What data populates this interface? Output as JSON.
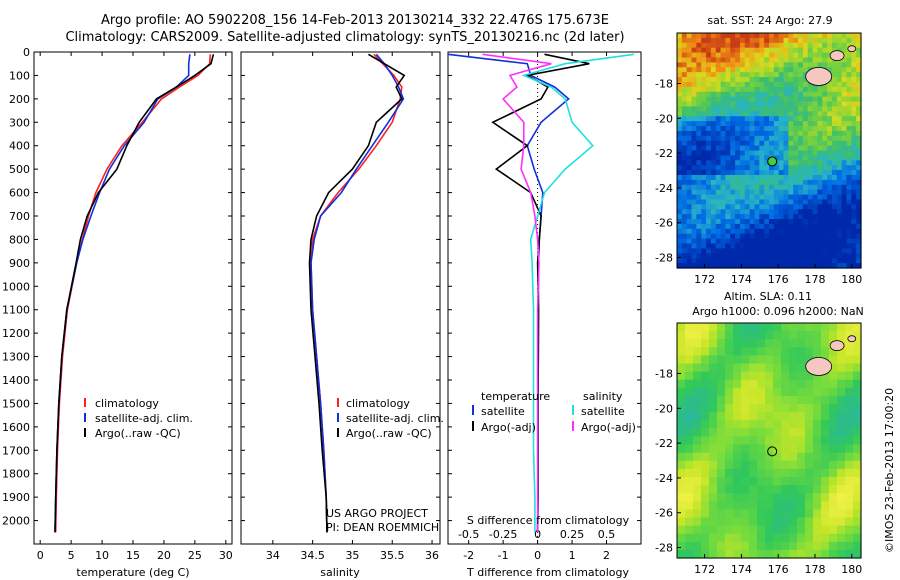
{
  "header": {
    "line1": "Argo profile: AO 5902208_156 14-Feb-2013 20130214_332 22.476S 175.673E",
    "line2": "Climatology: CARS2009. Satellite-adjusted climatology: synTS_20130216.nc (2d later)"
  },
  "colors": {
    "climatology": "#ff2020",
    "satellite": "#1030e0",
    "argo": "#000000",
    "satellite_s": "#20e0e0",
    "argo_s": "#ff30ff"
  },
  "chart_data": [
    {
      "type": "line",
      "xlabel": "temperature (deg C)",
      "ylabel": "",
      "ylim": [
        2100,
        0
      ],
      "xlim": [
        -1,
        31
      ],
      "xticks": [
        0,
        5,
        10,
        15,
        20,
        25,
        30
      ],
      "yticks": [
        0,
        100,
        200,
        300,
        400,
        500,
        600,
        700,
        800,
        900,
        1000,
        1100,
        1200,
        1300,
        1400,
        1500,
        1600,
        1700,
        1800,
        1900,
        2000
      ],
      "legend": [
        "climatology",
        "satellite-adj. clim.",
        "Argo(..raw -QC)"
      ],
      "series": [
        {
          "name": "climatology",
          "color": "#ff2020",
          "x": [
            27.5,
            27.4,
            25.5,
            22.5,
            19.6,
            16.5,
            13.2,
            10.8,
            9.0,
            7.8,
            6.8,
            5.9,
            4.4,
            3.6,
            3.1,
            2.8,
            2.6,
            2.5
          ],
          "y": [
            10,
            50,
            100,
            150,
            200,
            300,
            400,
            500,
            600,
            700,
            800,
            900,
            1100,
            1300,
            1500,
            1700,
            1900,
            2050
          ]
        },
        {
          "name": "satellite-adj. clim.",
          "color": "#1030e0",
          "x": [
            24.2,
            24.0,
            24.0,
            22.0,
            19.0,
            16.8,
            13.6,
            11.2,
            9.6,
            8.2,
            6.9,
            5.9,
            4.3,
            3.5,
            3.0,
            2.7,
            2.5,
            2.4
          ],
          "y": [
            10,
            50,
            100,
            150,
            200,
            300,
            400,
            500,
            600,
            700,
            800,
            900,
            1100,
            1300,
            1500,
            1700,
            1900,
            2050
          ]
        },
        {
          "name": "Argo(..raw -QC)",
          "color": "#000000",
          "x": [
            28.0,
            27.6,
            25.0,
            22.0,
            18.8,
            16.0,
            14.0,
            12.4,
            9.4,
            7.6,
            6.5,
            5.8,
            4.3,
            3.5,
            3.0,
            2.7,
            2.5,
            2.4
          ],
          "y": [
            10,
            50,
            100,
            150,
            200,
            300,
            400,
            500,
            600,
            700,
            800,
            900,
            1100,
            1300,
            1500,
            1700,
            1900,
            2050
          ]
        }
      ]
    },
    {
      "type": "line",
      "xlabel": "salinity",
      "ylabel": "",
      "ylim": [
        2100,
        0
      ],
      "xlim": [
        33.6,
        36.1
      ],
      "xticks": [
        34,
        34.5,
        35,
        35.5,
        36
      ],
      "legend": [
        "climatology",
        "satellite-adj. clim.",
        "Argo(..raw -QC)"
      ],
      "series": [
        {
          "name": "climatology",
          "color": "#ff2020",
          "x": [
            35.27,
            35.38,
            35.52,
            35.62,
            35.6,
            35.5,
            35.3,
            35.08,
            34.82,
            34.6,
            34.5,
            34.48,
            34.5,
            34.55,
            34.6,
            34.64,
            34.67,
            34.68
          ],
          "y": [
            10,
            50,
            100,
            150,
            200,
            300,
            400,
            500,
            600,
            700,
            800,
            900,
            1100,
            1300,
            1500,
            1700,
            1900,
            2050
          ]
        },
        {
          "name": "satellite-adj. clim.",
          "color": "#1030e0",
          "x": [
            35.3,
            35.4,
            35.5,
            35.58,
            35.64,
            35.45,
            35.25,
            35.05,
            34.86,
            34.6,
            34.52,
            34.48,
            34.5,
            34.55,
            34.6,
            34.64,
            34.67,
            34.68
          ],
          "y": [
            10,
            50,
            100,
            150,
            200,
            300,
            400,
            500,
            600,
            700,
            800,
            900,
            1100,
            1300,
            1500,
            1700,
            1900,
            2050
          ]
        },
        {
          "name": "Argo(..raw -QC)",
          "color": "#000000",
          "x": [
            35.2,
            35.4,
            35.65,
            35.55,
            35.62,
            35.3,
            35.2,
            35.0,
            34.7,
            34.55,
            34.48,
            34.46,
            34.48,
            34.53,
            34.58,
            34.62,
            34.67,
            34.68
          ],
          "y": [
            10,
            50,
            100,
            150,
            200,
            300,
            400,
            500,
            600,
            700,
            800,
            900,
            1100,
            1300,
            1500,
            1700,
            1900,
            2050
          ]
        }
      ],
      "annotation": [
        "US ARGO PROJECT",
        "PI: DEAN ROEMMICH"
      ]
    },
    {
      "type": "line",
      "xlabel": "T difference from climatology",
      "xlabel2": "S difference from climatology",
      "ylim": [
        2100,
        0
      ],
      "xlim": [
        -2.6,
        3.0
      ],
      "xticks": [
        -2,
        -1,
        0,
        1,
        2
      ],
      "xticks2": [
        {
          "v": -0.5,
          "t": "-0.5"
        },
        {
          "v": -0.25,
          "t": "-0.25"
        },
        {
          "v": 0,
          "t": "0"
        },
        {
          "v": 0.25,
          "t": "0.25"
        },
        {
          "v": 0.5,
          "t": "0.5"
        }
      ],
      "s_scale": 4,
      "legend_titles": [
        "temperature",
        "salinity"
      ],
      "legend": [
        "satellite",
        "Argo(-adj)",
        "satellite",
        "Argo(-adj)"
      ],
      "series": [
        {
          "name": "satellite",
          "group": "temperature",
          "color": "#1030e0",
          "x": [
            -3.2,
            -0.3,
            -0.2,
            0.5,
            0.9,
            0.1,
            -0.3,
            -0.1,
            0.15,
            0.1,
            0.05,
            0.03,
            0.02,
            0.02,
            0.01,
            0.01,
            0.01,
            0.0
          ],
          "y": [
            10,
            50,
            100,
            150,
            200,
            300,
            400,
            500,
            600,
            700,
            800,
            900,
            1100,
            1300,
            1500,
            1700,
            1900,
            2050
          ]
        },
        {
          "name": "Argo(-adj)",
          "group": "temperature",
          "color": "#000000",
          "x": [
            0.2,
            1.5,
            -0.3,
            0.3,
            0.1,
            -1.3,
            -0.3,
            -1.2,
            -0.2,
            0.1,
            0.05,
            0.0,
            0.03,
            0.02,
            0.01,
            0.01,
            0.01,
            0.0
          ],
          "y": [
            10,
            50,
            100,
            150,
            200,
            300,
            400,
            500,
            600,
            700,
            800,
            900,
            1100,
            1300,
            1500,
            1700,
            1900,
            2050
          ]
        },
        {
          "name": "satellite",
          "group": "salinity",
          "color": "#20e0e0",
          "x": [
            0.7,
            0.2,
            -0.1,
            0.1,
            0.2,
            0.25,
            0.4,
            0.2,
            0.05,
            0.0,
            -0.05,
            -0.04,
            -0.03,
            -0.03,
            -0.03,
            -0.03,
            -0.02,
            -0.02
          ],
          "y": [
            10,
            50,
            100,
            150,
            200,
            300,
            400,
            500,
            600,
            700,
            800,
            900,
            1100,
            1300,
            1500,
            1700,
            1900,
            2050
          ]
        },
        {
          "name": "Argo(-adj)",
          "group": "salinity",
          "color": "#ff30ff",
          "x": [
            -0.4,
            0.1,
            -0.2,
            -0.15,
            -0.25,
            -0.1,
            -0.1,
            -0.12,
            -0.05,
            -0.02,
            0.0,
            0.01,
            0.0,
            0.0,
            0.0,
            0.0,
            0.0,
            0.0
          ],
          "y": [
            10,
            50,
            100,
            150,
            200,
            300,
            400,
            500,
            600,
            700,
            800,
            900,
            1100,
            1300,
            1500,
            1700,
            1900,
            2050
          ]
        }
      ]
    },
    {
      "type": "heatmap",
      "title": "sat. SST: 24 Argo: 27.9",
      "xlim": [
        170.5,
        180.5
      ],
      "ylim": [
        -28.6,
        -15.1
      ],
      "xticks": [
        172,
        174,
        176,
        178,
        180
      ],
      "yticks": [
        -18,
        -20,
        -22,
        -24,
        -26,
        -28
      ],
      "marker": {
        "lon": 175.673,
        "lat": -22.476
      }
    },
    {
      "type": "heatmap",
      "title": "Altim. SLA: 0.11",
      "subtitle": "Argo h1000: 0.096 h2000: NaN",
      "xlim": [
        170.5,
        180.5
      ],
      "ylim": [
        -28.6,
        -15.1
      ],
      "xticks": [
        172,
        174,
        176,
        178,
        180
      ],
      "yticks": [
        -18,
        -20,
        -22,
        -24,
        -26,
        -28
      ],
      "marker": {
        "lon": 175.673,
        "lat": -22.476
      }
    }
  ],
  "side_stamp": "©IMOS 23-Feb-2013 17:00:20"
}
